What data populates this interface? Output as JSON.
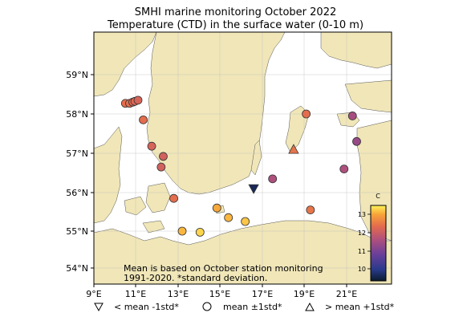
{
  "title": {
    "line1": "SMHI marine monitoring October 2022",
    "line2": "Temperature (CTD) in the surface water (0-10 m)"
  },
  "map": {
    "lon_range": [
      9,
      23.5
    ],
    "lat_range": [
      53.6,
      60
    ],
    "lon_ticks": [
      "9°E",
      "11°E",
      "13°E",
      "15°E",
      "17°E",
      "19°E",
      "21°E"
    ],
    "lat_ticks": [
      "54°N",
      "55°N",
      "56°N",
      "57°N",
      "58°N",
      "59°N"
    ],
    "land_color": "#f0e6b8",
    "sea_color": "#ffffff"
  },
  "note": {
    "line1": "Mean is based on October station monitoring",
    "line2": "1991-2020. *standard deviation."
  },
  "colorbar": {
    "unit": "C",
    "ticks": [
      "10",
      "11",
      "12",
      "13"
    ],
    "range": [
      9.3,
      13.7
    ]
  },
  "legend": [
    {
      "symbol": "triangle-down",
      "label": "< mean -1std*"
    },
    {
      "symbol": "circle",
      "label": "mean ±1std*"
    },
    {
      "symbol": "triangle-up",
      "label": "> mean +1std*"
    }
  ],
  "stations": [
    {
      "lon": 10.5,
      "lat": 58.27,
      "temp": 12.5,
      "marker": "circle"
    },
    {
      "lon": 10.7,
      "lat": 58.27,
      "temp": 12.5,
      "marker": "circle"
    },
    {
      "lon": 10.85,
      "lat": 58.3,
      "temp": 12.4,
      "marker": "circle"
    },
    {
      "lon": 10.95,
      "lat": 58.32,
      "temp": 12.4,
      "marker": "circle"
    },
    {
      "lon": 11.1,
      "lat": 58.35,
      "temp": 12.3,
      "marker": "circle"
    },
    {
      "lon": 11.35,
      "lat": 57.85,
      "temp": 12.5,
      "marker": "circle"
    },
    {
      "lon": 11.75,
      "lat": 57.18,
      "temp": 12.3,
      "marker": "circle"
    },
    {
      "lon": 12.3,
      "lat": 56.92,
      "temp": 12.2,
      "marker": "circle"
    },
    {
      "lon": 12.2,
      "lat": 56.65,
      "temp": 12.2,
      "marker": "circle"
    },
    {
      "lon": 12.8,
      "lat": 55.85,
      "temp": 12.5,
      "marker": "circle"
    },
    {
      "lon": 17.5,
      "lat": 56.35,
      "temp": 11.7,
      "marker": "circle"
    },
    {
      "lon": 16.6,
      "lat": 56.1,
      "temp": 9.6,
      "marker": "triangle-down"
    },
    {
      "lon": 18.5,
      "lat": 57.1,
      "temp": 12.6,
      "marker": "triangle-up"
    },
    {
      "lon": 19.1,
      "lat": 58.0,
      "temp": 12.5,
      "marker": "circle"
    },
    {
      "lon": 21.3,
      "lat": 57.95,
      "temp": 11.6,
      "marker": "circle"
    },
    {
      "lon": 21.5,
      "lat": 57.3,
      "temp": 11.4,
      "marker": "circle"
    },
    {
      "lon": 20.9,
      "lat": 56.6,
      "temp": 11.7,
      "marker": "circle"
    },
    {
      "lon": 14.85,
      "lat": 55.6,
      "temp": 13.2,
      "marker": "circle"
    },
    {
      "lon": 15.4,
      "lat": 55.35,
      "temp": 13.3,
      "marker": "circle"
    },
    {
      "lon": 16.2,
      "lat": 55.25,
      "temp": 13.4,
      "marker": "circle"
    },
    {
      "lon": 19.3,
      "lat": 55.55,
      "temp": 12.6,
      "marker": "circle"
    },
    {
      "lon": 13.2,
      "lat": 55.0,
      "temp": 13.3,
      "marker": "circle"
    },
    {
      "lon": 14.05,
      "lat": 54.97,
      "temp": 13.5,
      "marker": "circle"
    }
  ]
}
